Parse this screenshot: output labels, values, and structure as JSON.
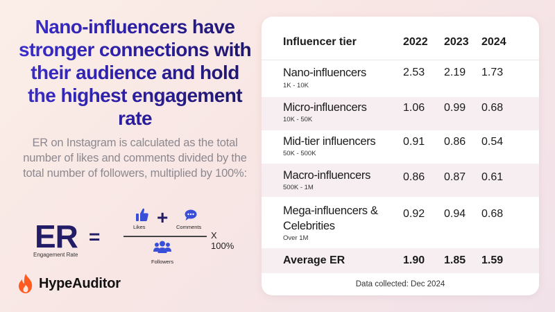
{
  "headline": "Nano-influencers have stronger connections with their audience and hold the highest engagement rate",
  "description": "ER on Instagram is calculated as the total number of likes and comments divided by the total number of followers, multiplied by 100%:",
  "formula": {
    "er": "ER",
    "er_caption": "Engagement Rate",
    "equals": "=",
    "likes": "Likes",
    "plus": "+",
    "comments": "Comments",
    "followers": "Followers",
    "multiplier": "X 100%"
  },
  "brand": {
    "name": "HypeAuditor",
    "color": "#ff5a1f"
  },
  "table": {
    "headers": [
      "Influencer tier",
      "2022",
      "2023",
      "2024"
    ],
    "rows": [
      {
        "name": "Nano-influencers",
        "range": "1K - 10K",
        "values": [
          "2.53",
          "2.19",
          "1.73"
        ]
      },
      {
        "name": "Micro-influencers",
        "range": "10K - 50K",
        "values": [
          "1.06",
          "0.99",
          "0.68"
        ]
      },
      {
        "name": "Mid-tier influencers",
        "range": "50K - 500K",
        "values": [
          "0.91",
          "0.86",
          "0.54"
        ]
      },
      {
        "name": "Macro-influencers",
        "range": "500K - 1M",
        "values": [
          "0.86",
          "0.87",
          "0.61"
        ]
      },
      {
        "name": "Mega-influencers & Celebrities",
        "range": "Over 1M",
        "values": [
          "0.92",
          "0.94",
          "0.68"
        ]
      }
    ],
    "average": {
      "label": "Average ER",
      "values": [
        "1.90",
        "1.85",
        "1.59"
      ]
    },
    "footer": "Data collected:  Dec 2024"
  },
  "colors": {
    "headline": "#2a1d9a",
    "formula": "#231d68",
    "icon_blue": "#3a4fd8"
  }
}
